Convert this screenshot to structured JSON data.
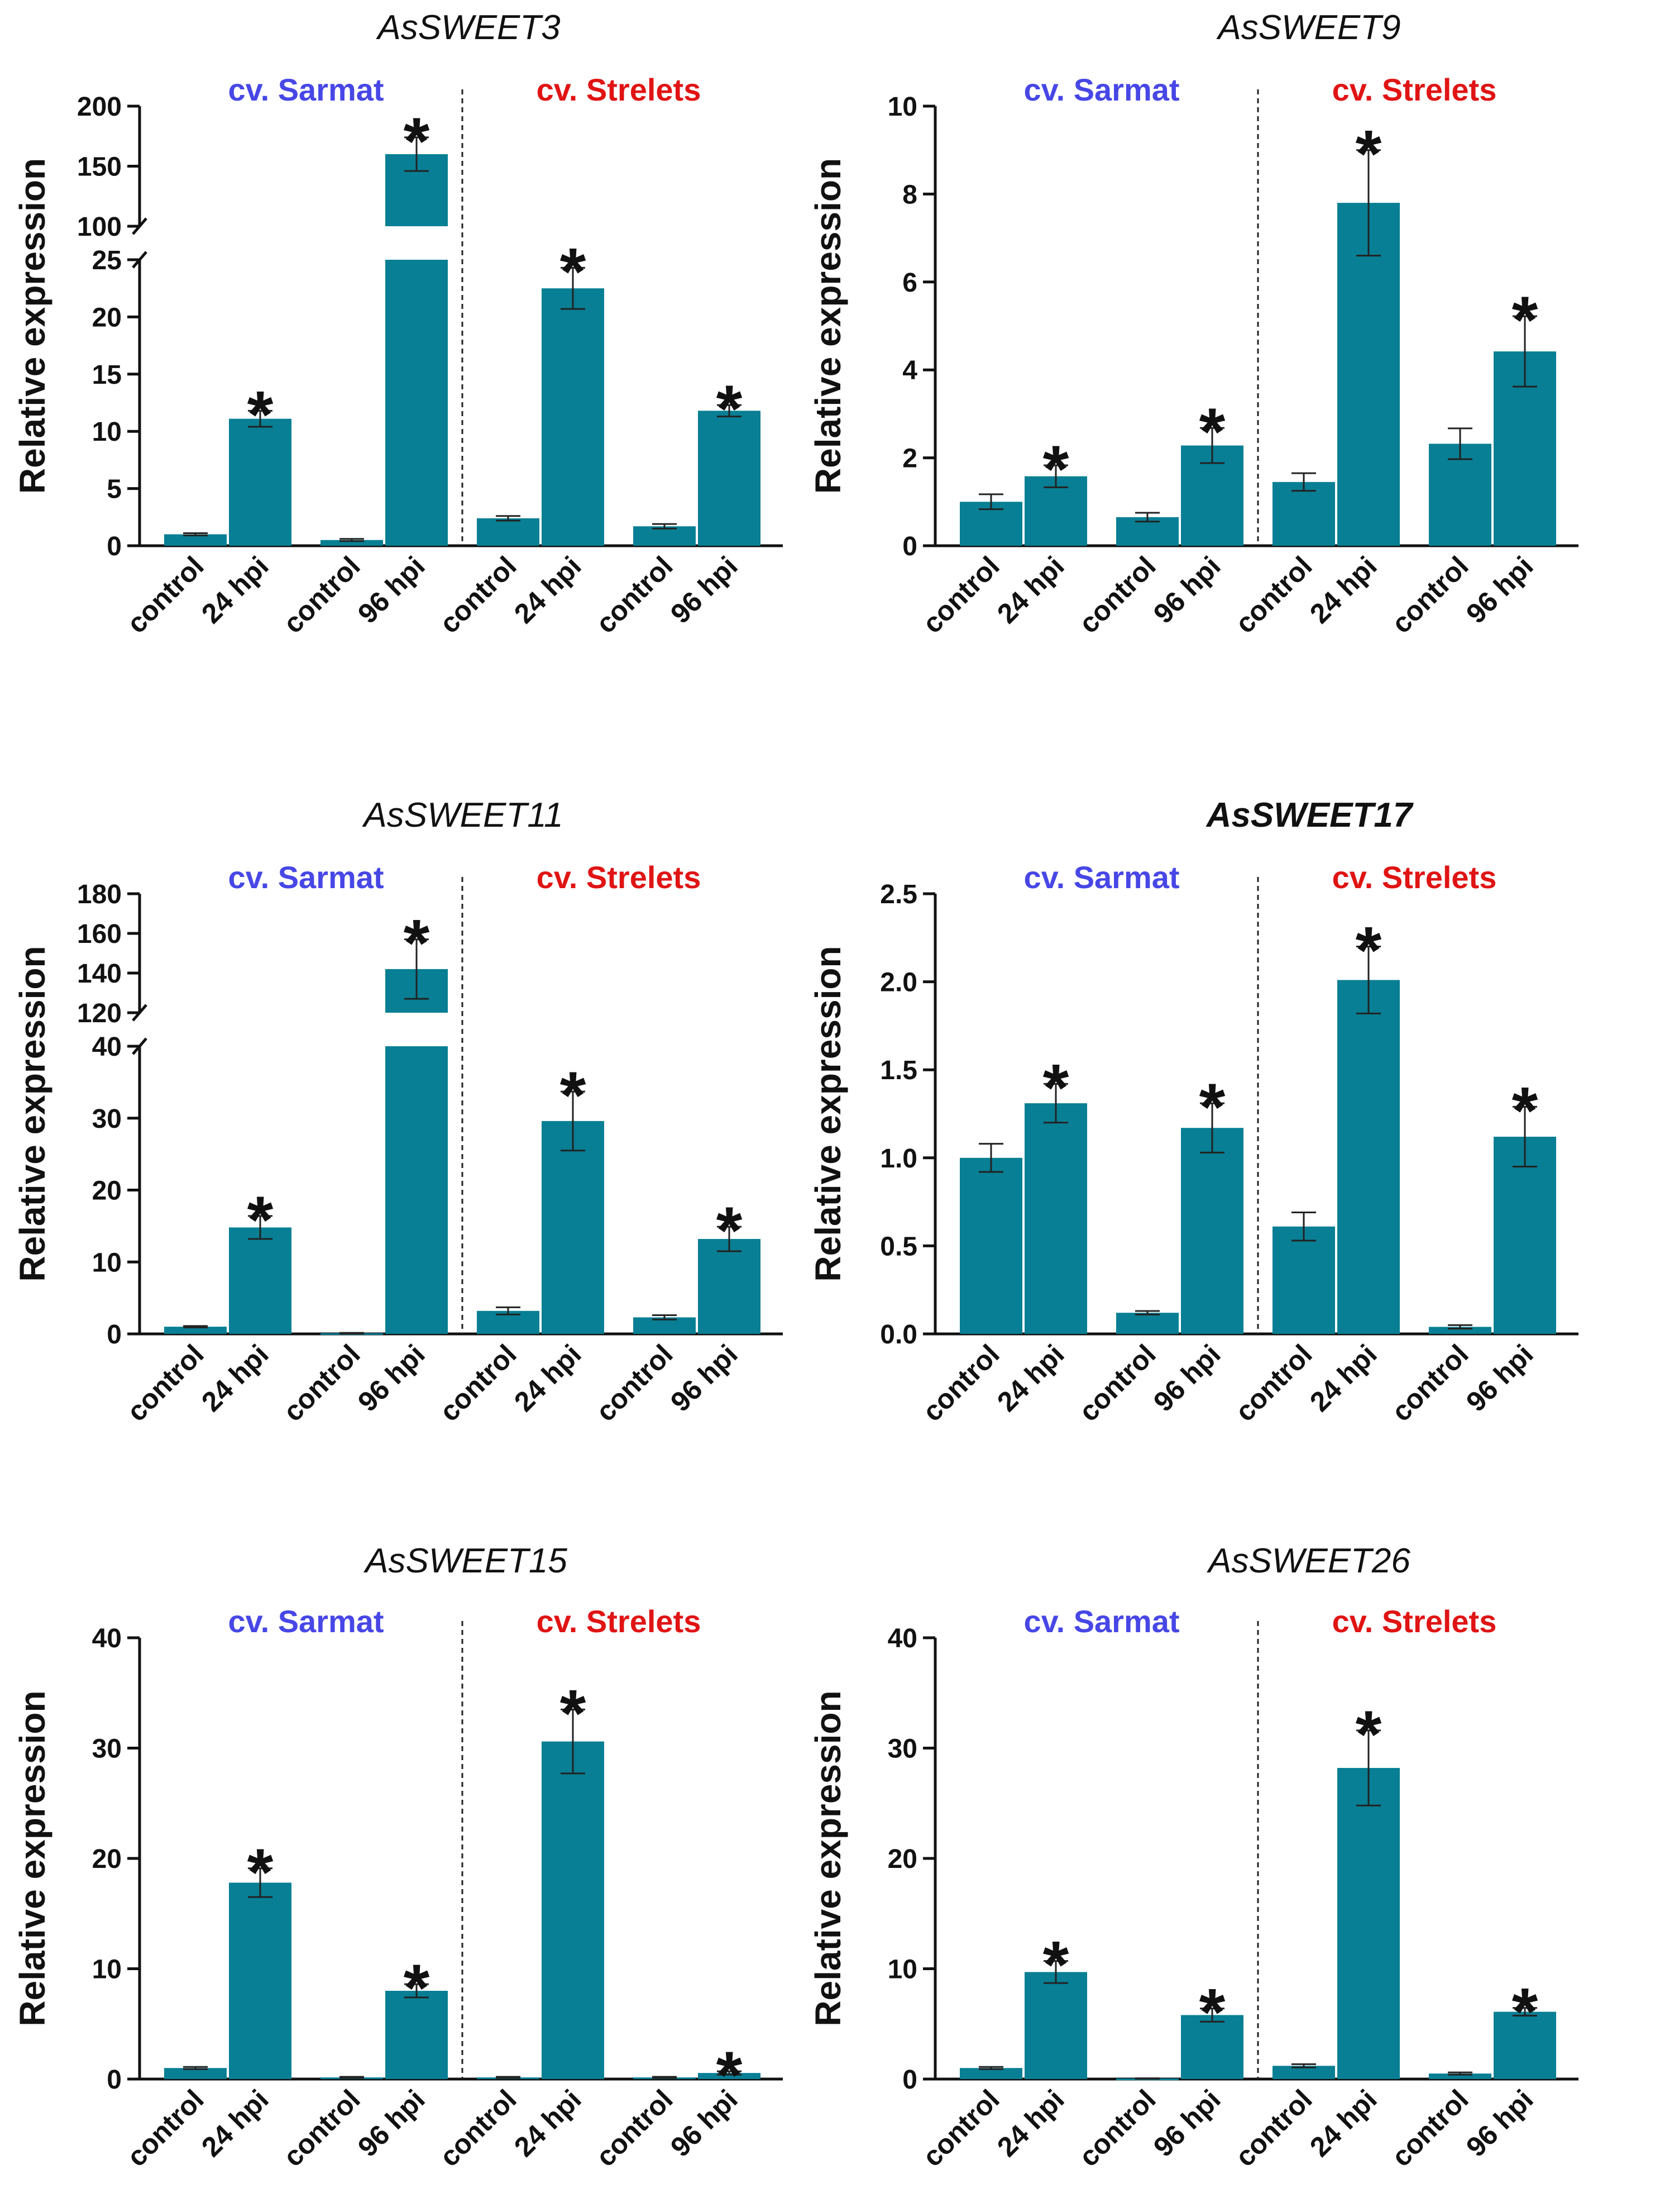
{
  "colors": {
    "bar": "#087f94",
    "sarmat": "#4747e6",
    "strelets": "#e01414",
    "axis": "#111111"
  },
  "chart_data": [
    {
      "type": "bar",
      "title": "AsSWEET3",
      "title_bold": false,
      "ylabel": "Relative expression",
      "groups": [
        "cv. Sarmat",
        "cv. Strelets"
      ],
      "categories": [
        "control",
        "24 hpi",
        "control",
        "96 hpi",
        "control",
        "24 hpi",
        "control",
        "96 hpi"
      ],
      "values": [
        1.0,
        11.1,
        0.5,
        160,
        2.4,
        22.5,
        1.7,
        11.8
      ],
      "errors": [
        0.1,
        0.7,
        0.1,
        14,
        0.2,
        1.8,
        0.2,
        0.5
      ],
      "significant": [
        false,
        true,
        false,
        true,
        false,
        true,
        false,
        true
      ],
      "broken_axis": true,
      "ylim_lower": [
        0,
        25
      ],
      "ylim_upper": [
        100,
        200
      ],
      "ticks_lower": [
        "0",
        "5",
        "10",
        "15",
        "20",
        "25"
      ],
      "ticks_upper": [
        "100",
        "150",
        "200"
      ]
    },
    {
      "type": "bar",
      "title": "AsSWEET9",
      "title_bold": false,
      "ylabel": "Relative expression",
      "groups": [
        "cv. Sarmat",
        "cv. Strelets"
      ],
      "categories": [
        "control",
        "24 hpi",
        "control",
        "96 hpi",
        "control",
        "24 hpi",
        "control",
        "96 hpi"
      ],
      "values": [
        1.0,
        1.58,
        0.65,
        2.28,
        1.45,
        7.8,
        2.32,
        4.42
      ],
      "errors": [
        0.17,
        0.25,
        0.1,
        0.4,
        0.2,
        1.2,
        0.35,
        0.8
      ],
      "significant": [
        false,
        true,
        false,
        true,
        false,
        true,
        false,
        true
      ],
      "broken_axis": false,
      "ylim": [
        0,
        10
      ],
      "ticks": [
        "0",
        "2",
        "4",
        "6",
        "8",
        "10"
      ]
    },
    {
      "type": "bar",
      "title": "AsSWEET11",
      "title_bold": false,
      "ylabel": "Relative expression",
      "groups": [
        "cv. Sarmat",
        "cv. Strelets"
      ],
      "categories": [
        "control",
        "24 hpi",
        "control",
        "96 hpi",
        "control",
        "24 hpi",
        "control",
        "96 hpi"
      ],
      "values": [
        1.0,
        14.8,
        0.1,
        142,
        3.2,
        29.6,
        2.3,
        13.2
      ],
      "errors": [
        0.1,
        1.6,
        0.05,
        15,
        0.5,
        4.1,
        0.3,
        1.7
      ],
      "significant": [
        false,
        true,
        false,
        true,
        false,
        true,
        false,
        true
      ],
      "broken_axis": true,
      "ylim_lower": [
        0,
        40
      ],
      "ylim_upper": [
        120,
        180
      ],
      "ticks_lower": [
        "0",
        "10",
        "20",
        "30",
        "40"
      ],
      "ticks_upper": [
        "120",
        "140",
        "160",
        "180"
      ]
    },
    {
      "type": "bar",
      "title": "AsSWEET17",
      "title_bold": true,
      "ylabel": "Relative expression",
      "groups": [
        "cv. Sarmat",
        "cv. Strelets"
      ],
      "categories": [
        "control",
        "24 hpi",
        "control",
        "96 hpi",
        "control",
        "24 hpi",
        "control",
        "96 hpi"
      ],
      "values": [
        1.0,
        1.31,
        0.12,
        1.17,
        0.61,
        2.01,
        0.04,
        1.12
      ],
      "errors": [
        0.08,
        0.11,
        0.01,
        0.14,
        0.08,
        0.19,
        0.01,
        0.17
      ],
      "significant": [
        false,
        true,
        false,
        true,
        false,
        true,
        false,
        true
      ],
      "broken_axis": false,
      "ylim": [
        0,
        2.5
      ],
      "ticks": [
        "0.0",
        "0.5",
        "1.0",
        "1.5",
        "2.0",
        "2.5"
      ]
    },
    {
      "type": "bar",
      "title": "AsSWEET15",
      "title_bold": false,
      "ylabel": "Relative expression",
      "groups": [
        "cv. Sarmat",
        "cv. Strelets"
      ],
      "categories": [
        "control",
        "24 hpi",
        "control",
        "96 hpi",
        "control",
        "24 hpi",
        "control",
        "96 hpi"
      ],
      "values": [
        1.0,
        17.8,
        0.15,
        8.0,
        0.15,
        30.6,
        0.15,
        0.55
      ],
      "errors": [
        0.1,
        1.3,
        0.05,
        0.6,
        0.05,
        2.9,
        0.05,
        0.15
      ],
      "significant": [
        false,
        true,
        false,
        true,
        false,
        true,
        false,
        true
      ],
      "broken_axis": false,
      "ylim": [
        0,
        40
      ],
      "ticks": [
        "0",
        "10",
        "20",
        "30",
        "40"
      ]
    },
    {
      "type": "bar",
      "title": "AsSWEET26",
      "title_bold": false,
      "ylabel": "Relative expression",
      "groups": [
        "cv. Sarmat",
        "cv. Strelets"
      ],
      "categories": [
        "control",
        "24 hpi",
        "control",
        "96 hpi",
        "control",
        "24 hpi",
        "control",
        "96 hpi"
      ],
      "values": [
        1.0,
        9.7,
        0.05,
        5.8,
        1.2,
        28.2,
        0.5,
        6.1
      ],
      "errors": [
        0.1,
        1.0,
        0.02,
        0.6,
        0.15,
        3.4,
        0.1,
        0.35
      ],
      "significant": [
        false,
        true,
        false,
        true,
        false,
        true,
        false,
        true
      ],
      "broken_axis": false,
      "ylim": [
        0,
        40
      ],
      "ticks": [
        "0",
        "10",
        "20",
        "30",
        "40"
      ]
    }
  ]
}
